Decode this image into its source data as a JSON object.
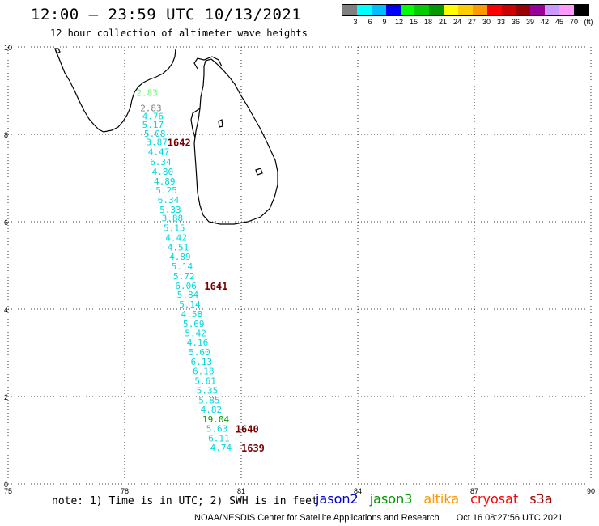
{
  "header": {
    "title": "12:00 – 23:59 UTC 10/13/2021",
    "subtitle": "12 hour collection of altimeter wave heights"
  },
  "legend": {
    "colors": [
      "#808080",
      "#00ffff",
      "#00bfff",
      "#0000ff",
      "#00ff00",
      "#00cc00",
      "#009900",
      "#ffff00",
      "#ffcc00",
      "#ff9900",
      "#ff0000",
      "#cc0000",
      "#990000",
      "#990099",
      "#cc99ff",
      "#ff99ff",
      "#000000"
    ],
    "labels": [
      "3",
      "6",
      "9",
      "12",
      "15",
      "18",
      "21",
      "24",
      "27",
      "30",
      "33",
      "36",
      "39",
      "42",
      "45",
      "70",
      "(ft)"
    ]
  },
  "map": {
    "x_ticks": [
      "75",
      "78",
      "81",
      "84",
      "87",
      "90"
    ],
    "y_ticks": [
      "0",
      "2",
      "4",
      "6",
      "8",
      "10"
    ],
    "lon_range": [
      75,
      90
    ],
    "lat_range": [
      0,
      10
    ]
  },
  "measurements": [
    {
      "text": "2.83",
      "lon": 78.3,
      "lat": 8.95,
      "color": "#66ff66"
    },
    {
      "text": "2.83",
      "lon": 78.4,
      "lat": 8.6,
      "color": "#808080"
    },
    {
      "text": "4.76",
      "lon": 78.45,
      "lat": 8.42,
      "color": "#00d8e0"
    },
    {
      "text": "5.17",
      "lon": 78.45,
      "lat": 8.22,
      "color": "#00d8e0"
    },
    {
      "text": "5.08",
      "lon": 78.5,
      "lat": 8.02,
      "color": "#00d8e0"
    },
    {
      "text": "3.87",
      "lon": 78.55,
      "lat": 7.82,
      "color": "#00d8e0"
    },
    {
      "text": "4.47",
      "lon": 78.6,
      "lat": 7.6,
      "color": "#00d8e0"
    },
    {
      "text": "6.34",
      "lon": 78.65,
      "lat": 7.37,
      "color": "#00d8e0"
    },
    {
      "text": "4.80",
      "lon": 78.7,
      "lat": 7.15,
      "color": "#00d8e0"
    },
    {
      "text": "4.89",
      "lon": 78.75,
      "lat": 6.93,
      "color": "#00d8e0"
    },
    {
      "text": "5.25",
      "lon": 78.8,
      "lat": 6.72,
      "color": "#00d8e0"
    },
    {
      "text": "6.34",
      "lon": 78.85,
      "lat": 6.5,
      "color": "#00d8e0"
    },
    {
      "text": "5.33",
      "lon": 78.9,
      "lat": 6.28,
      "color": "#00d8e0"
    },
    {
      "text": "3.88",
      "lon": 78.95,
      "lat": 6.08,
      "color": "#00d8e0"
    },
    {
      "text": "5.15",
      "lon": 79.0,
      "lat": 5.86,
      "color": "#00d8e0"
    },
    {
      "text": "4.42",
      "lon": 79.05,
      "lat": 5.64,
      "color": "#00d8e0"
    },
    {
      "text": "4.51",
      "lon": 79.1,
      "lat": 5.42,
      "color": "#00d8e0"
    },
    {
      "text": "4.89",
      "lon": 79.15,
      "lat": 5.2,
      "color": "#00d8e0"
    },
    {
      "text": "5.14",
      "lon": 79.2,
      "lat": 4.98,
      "color": "#00d8e0"
    },
    {
      "text": "5.72",
      "lon": 79.25,
      "lat": 4.76,
      "color": "#00d8e0"
    },
    {
      "text": "6.06",
      "lon": 79.3,
      "lat": 4.54,
      "color": "#00d8e0"
    },
    {
      "text": "5.84",
      "lon": 79.35,
      "lat": 4.33,
      "color": "#00d8e0"
    },
    {
      "text": "5.14",
      "lon": 79.4,
      "lat": 4.11,
      "color": "#00d8e0"
    },
    {
      "text": "4.58",
      "lon": 79.45,
      "lat": 3.89,
      "color": "#00d8e0"
    },
    {
      "text": "5.69",
      "lon": 79.5,
      "lat": 3.67,
      "color": "#00d8e0"
    },
    {
      "text": "5.42",
      "lon": 79.55,
      "lat": 3.45,
      "color": "#00d8e0"
    },
    {
      "text": "4.16",
      "lon": 79.6,
      "lat": 3.24,
      "color": "#00d8e0"
    },
    {
      "text": "5.60",
      "lon": 79.65,
      "lat": 3.02,
      "color": "#00d8e0"
    },
    {
      "text": "6.13",
      "lon": 79.7,
      "lat": 2.8,
      "color": "#00d8e0"
    },
    {
      "text": "6.18",
      "lon": 79.75,
      "lat": 2.58,
      "color": "#00d8e0"
    },
    {
      "text": "5.61",
      "lon": 79.8,
      "lat": 2.36,
      "color": "#00d8e0"
    },
    {
      "text": "5.35",
      "lon": 79.85,
      "lat": 2.14,
      "color": "#00d8e0"
    },
    {
      "text": "5.85",
      "lon": 79.9,
      "lat": 1.92,
      "color": "#00d8e0"
    },
    {
      "text": "4.82",
      "lon": 79.95,
      "lat": 1.7,
      "color": "#00d8e0"
    },
    {
      "text": "19.04",
      "lon": 80.0,
      "lat": 1.48,
      "color": "#009900"
    },
    {
      "text": "5.63",
      "lon": 80.1,
      "lat": 1.27,
      "color": "#00d8e0"
    },
    {
      "text": "6.11",
      "lon": 80.15,
      "lat": 1.05,
      "color": "#00d8e0"
    },
    {
      "text": "4.74",
      "lon": 80.2,
      "lat": 0.83,
      "color": "#00d8e0"
    }
  ],
  "times": [
    {
      "text": "1642",
      "lon": 79.1,
      "lat": 7.82
    },
    {
      "text": "1641",
      "lon": 80.05,
      "lat": 4.54
    },
    {
      "text": "1640",
      "lon": 80.85,
      "lat": 1.27
    },
    {
      "text": "1639",
      "lon": 81.0,
      "lat": 0.83
    }
  ],
  "footer": {
    "note": "note: 1) Time is in UTC; 2) SWH is in feet",
    "satellites": [
      {
        "label": "jason2",
        "color": "#0000cc"
      },
      {
        "label": "jason3",
        "color": "#009900"
      },
      {
        "label": "altika",
        "color": "#ff9900"
      },
      {
        "label": "cryosat",
        "color": "#ff0000"
      },
      {
        "label": "s3a",
        "color": "#990000"
      }
    ],
    "credit": "NOAA/NESDIS Center for Satellite Applications and Research",
    "timestamp": "Oct 16 08:27:56 UTC 2021"
  }
}
